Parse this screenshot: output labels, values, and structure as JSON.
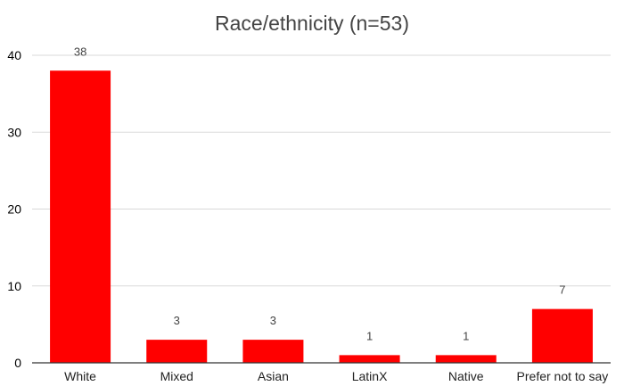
{
  "chart_data": {
    "type": "bar",
    "title": "Race/ethnicity (n=53)",
    "xlabel": "",
    "ylabel": "",
    "categories": [
      "White",
      "Mixed",
      "Asian",
      "LatinX",
      "Native",
      "Prefer not to say"
    ],
    "values": [
      38,
      3,
      3,
      1,
      1,
      7
    ],
    "ylim": [
      0,
      40
    ],
    "yticks": [
      0,
      10,
      20,
      30,
      40
    ],
    "grid": true,
    "legend": "none",
    "bar_color": "#ff0000",
    "data_labels": true
  }
}
